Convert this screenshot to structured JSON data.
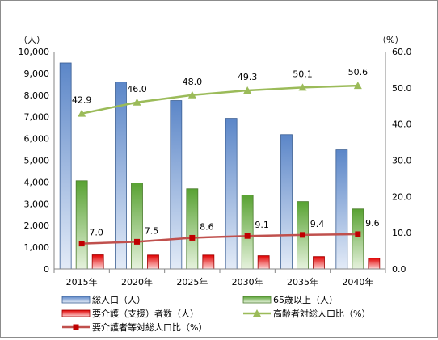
{
  "chart_data": {
    "type": "bar",
    "categories": [
      "2015年",
      "2020年",
      "2025年",
      "2030年",
      "2035年",
      "2040年"
    ],
    "series": [
      {
        "name": "総人口（人）",
        "kind": "bar",
        "axis": "left",
        "color": "#4f81bd",
        "values": [
          9480,
          8600,
          7750,
          6930,
          6180,
          5480
        ]
      },
      {
        "name": "65歳以上（人）",
        "kind": "bar",
        "axis": "left",
        "color": "#70ad47",
        "values": [
          4060,
          3960,
          3690,
          3400,
          3100,
          2760
        ]
      },
      {
        "name": "要介護（支援）者数（人）",
        "kind": "bar",
        "axis": "left",
        "color": "#e00000",
        "values": [
          650,
          640,
          640,
          610,
          570,
          500
        ]
      },
      {
        "name": "高齢者対総人口比（%）",
        "kind": "line",
        "axis": "right",
        "color": "#9bbb59",
        "marker": "triangle",
        "values": [
          42.9,
          46.0,
          48.0,
          49.3,
          50.1,
          50.6
        ],
        "labels": [
          "42.9",
          "46.0",
          "48.0",
          "49.3",
          "50.1",
          "50.6"
        ]
      },
      {
        "name": "要介護者等対総人口比（%）",
        "kind": "line",
        "axis": "right",
        "color": "#c0504d",
        "marker": "square",
        "values": [
          7.0,
          7.5,
          8.6,
          9.1,
          9.4,
          9.6
        ],
        "labels": [
          "7.0",
          "7.5",
          "8.6",
          "9.1",
          "9.4",
          "9.6"
        ]
      }
    ],
    "left_axis": {
      "unit": "（人）",
      "min": 0,
      "max": 10000,
      "step": 1000,
      "ticks": [
        "0",
        "1,000",
        "2,000",
        "3,000",
        "4,000",
        "5,000",
        "6,000",
        "7,000",
        "8,000",
        "9,000",
        "10,000"
      ]
    },
    "right_axis": {
      "unit": "（%）",
      "min": 0,
      "max": 60,
      "step": 10,
      "ticks": [
        "0.0",
        "10.0",
        "20.0",
        "30.0",
        "40.0",
        "50.0",
        "60.0"
      ]
    },
    "grid": false,
    "legend_position": "bottom"
  }
}
